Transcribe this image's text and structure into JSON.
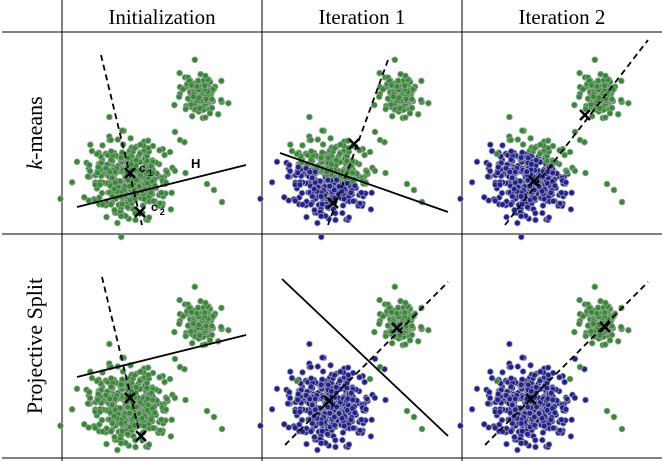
{
  "columns": [
    "Initialization",
    "Iteration 1",
    "Iteration 2"
  ],
  "rows": [
    {
      "label_italic": "k",
      "label_rest": "-means"
    },
    {
      "label_italic": "",
      "label_rest": "Projective Split"
    }
  ],
  "annotations": {
    "hyperplane": "H",
    "center_1": "c",
    "center_1_sub": "1",
    "center_2": "c",
    "center_2_sub": "2"
  },
  "colors": {
    "cluster_green": "#2f8f2f",
    "cluster_blue": "#1f1f9a",
    "point_stroke": "#a0a0a0",
    "line": "#000000",
    "grid": "#000000"
  },
  "panels": [
    {
      "row": 0,
      "col": 0,
      "coloring": "all-green",
      "line": "solid",
      "dash": "dashed",
      "centers": 2
    },
    {
      "row": 0,
      "col": 1,
      "coloring": "blue-below-solid",
      "line": "solid",
      "dash": "dashed",
      "centers": 2
    },
    {
      "row": 0,
      "col": 2,
      "coloring": "blue-below-diagonal",
      "line": "none",
      "dash": "dashed",
      "centers": 2
    },
    {
      "row": 1,
      "col": 0,
      "coloring": "all-green",
      "line": "solid",
      "dash": "dashed",
      "centers": 2
    },
    {
      "row": 1,
      "col": 1,
      "coloring": "blue-big-cluster",
      "line": "solid",
      "dash": "dashed",
      "centers": 2
    },
    {
      "row": 1,
      "col": 2,
      "coloring": "blue-big-cluster",
      "line": "none",
      "dash": "dashed",
      "centers": 2
    }
  ]
}
